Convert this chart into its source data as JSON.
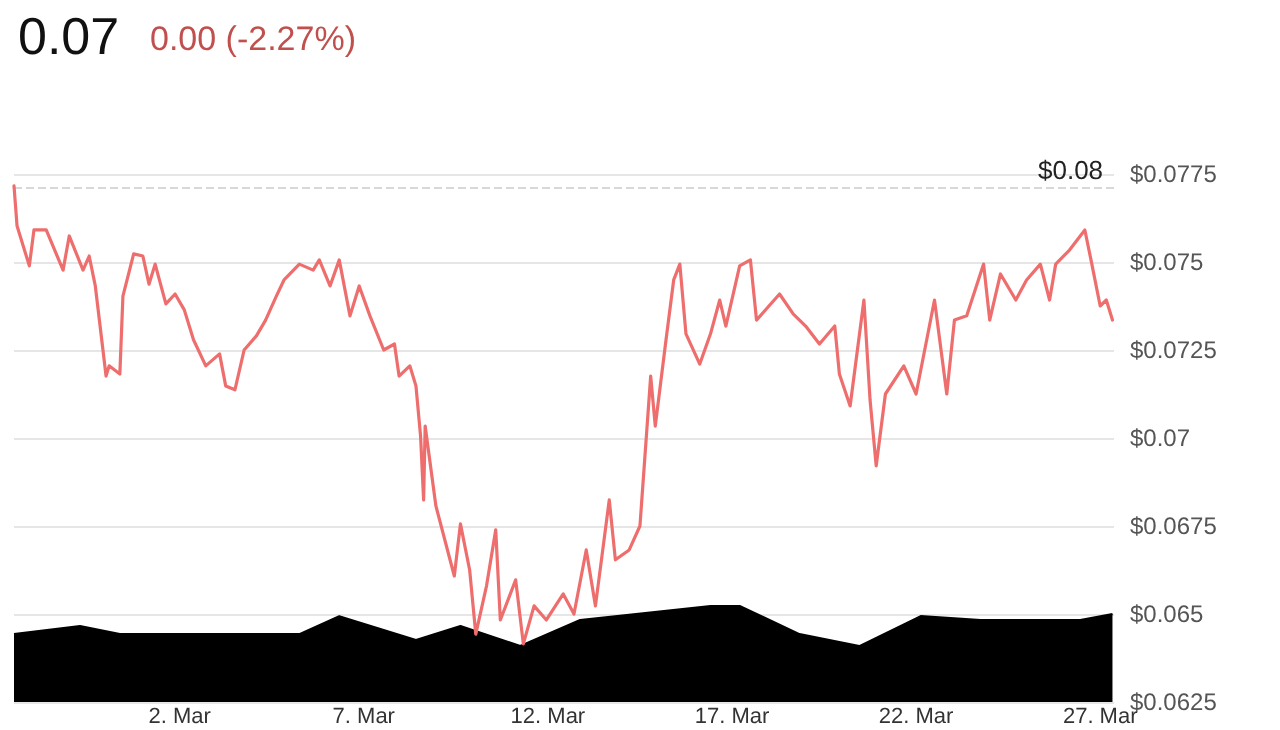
{
  "chart_data": {
    "type": "line",
    "title": "0.07",
    "subtitle": "0.00 (-2.27%)",
    "marker": "none",
    "line_style": "solid",
    "grid": "y",
    "xlim": [
      "--02-25T12:00",
      "--03-27T09:00"
    ],
    "xticks": [
      {
        "value": "--03-02",
        "label": "2. Mar"
      },
      {
        "value": "--03-07",
        "label": "7. Mar"
      },
      {
        "value": "--03-12",
        "label": "12. Mar"
      },
      {
        "value": "--03-17",
        "label": "17. Mar"
      },
      {
        "value": "--03-22",
        "label": "22. Mar"
      },
      {
        "value": "--03-27",
        "label": "27. Mar"
      }
    ],
    "ylim": [
      0.0625,
      0.0775
    ],
    "yticks": [
      {
        "value": 0.0625,
        "label": "$0.0625"
      },
      {
        "value": 0.065,
        "label": "$0.065"
      },
      {
        "value": 0.0675,
        "label": "$0.0675"
      },
      {
        "value": 0.07,
        "label": "$0.07"
      },
      {
        "value": 0.0725,
        "label": "$0.0725"
      },
      {
        "value": 0.075,
        "label": "$0.075"
      },
      {
        "value": 0.0775,
        "label": "$0.0775"
      }
    ],
    "ref_lines": [
      {
        "axis": "y",
        "value": 0.0771,
        "label": "$0.08",
        "color": "#d8d8d8",
        "line_style": "dashed"
      }
    ],
    "series": [
      {
        "type": "area",
        "color": "#000000",
        "x": [
          "--02-25T12:00",
          "--02-27T07:00",
          "--02-28T09:00",
          "--03-05T06:00",
          "--03-06T08:00",
          "--03-08T10:00",
          "--03-09T15:00",
          "--03-11T06:00",
          "--03-12T21:00",
          "--03-16T10:00",
          "--03-17T05:00",
          "--03-18T20:00",
          "--03-20T11:00",
          "--03-22T03:00",
          "--03-23T18:00",
          "--03-26T11:00",
          "--03-27T08:00"
        ],
        "values": [
          0.06443,
          0.06466,
          0.06443,
          0.06443,
          0.06494,
          0.06426,
          0.06466,
          0.06409,
          0.06483,
          0.06523,
          0.06523,
          0.06443,
          0.06409,
          0.06494,
          0.06483,
          0.06483,
          0.065
        ]
      },
      {
        "color": "#ee6e6e",
        "x": [
          "--02-25T12:00",
          "--02-25T14:00",
          "--02-25T22:00",
          "--02-26T01:00",
          "--02-26T09:00",
          "--02-26T20:00",
          "--02-27T00:00",
          "--02-27T09:00",
          "--02-27T13:00",
          "--02-27T17:00",
          "--02-28T00:00",
          "--02-28T02:00",
          "--02-28T09:00",
          "--02-28T11:00",
          "--02-28T18:00",
          "--03-01T00:00",
          "--03-01T04:00",
          "--03-01T08:00",
          "--03-01T15:00",
          "--03-01T21:00",
          "--03-02T03:00",
          "--03-02T09:00",
          "--03-02T17:00",
          "--03-03T02:00",
          "--03-03T06:00",
          "--03-03T12:00",
          "--03-03T18:00",
          "--03-04T02:00",
          "--03-04T08:00",
          "--03-04T15:00",
          "--03-04T20:00",
          "--03-05T06:00",
          "--03-05T15:00",
          "--03-05T19:00",
          "--03-06T02:00",
          "--03-06T08:00",
          "--03-06T15:00",
          "--03-06T21:00",
          "--03-07T04:00",
          "--03-07T13:00",
          "--03-07T20:00",
          "--03-07T23:00",
          "--03-08T06:00",
          "--03-08T10:00",
          "--03-08T13:00",
          "--03-08T15:00",
          "--03-08T16:00",
          "--03-08T23:00",
          "--03-09T11:00",
          "--03-09T15:00",
          "--03-09T21:00",
          "--03-10T01:00",
          "--03-10T08:00",
          "--03-10T14:00",
          "--03-10T17:00",
          "--03-11T03:00",
          "--03-11T08:00",
          "--03-11T15:00",
          "--03-11T23:00",
          "--03-12T10:00",
          "--03-12T17:00",
          "--03-13T01:00",
          "--03-13T07:00",
          "--03-13T16:00",
          "--03-13T20:00",
          "--03-14T05:00",
          "--03-14T12:00",
          "--03-14T19:00",
          "--03-14T22:00",
          "--03-15T05:00",
          "--03-15T10:00",
          "--03-15T14:00",
          "--03-15T18:00",
          "--03-16T03:00",
          "--03-16T10:00",
          "--03-16T16:00",
          "--03-16T20:00",
          "--03-17T05:00",
          "--03-17T12:00",
          "--03-17T16:00",
          "--03-18T07:00",
          "--03-18T16:00",
          "--03-19T00:00",
          "--03-19T09:00",
          "--03-19T19:00",
          "--03-19T22:00",
          "--03-20T05:00",
          "--03-20T14:00",
          "--03-20T18:00",
          "--03-20T22:00",
          "--03-21T04:00",
          "--03-21T16:00",
          "--03-22T00:00",
          "--03-22T12:00",
          "--03-22T20:00",
          "--03-23T01:00",
          "--03-23T09:00",
          "--03-23T20:00",
          "--03-24T00:00",
          "--03-24T07:00",
          "--03-24T17:00",
          "--03-25T00:00",
          "--03-25T09:00",
          "--03-25T15:00",
          "--03-25T19:00",
          "--03-26T04:00",
          "--03-26T14:00",
          "--03-26T18:00",
          "--03-27T00:00",
          "--03-27T04:00",
          "--03-27T08:00"
        ],
        "values": [
          0.07716,
          0.07602,
          0.07489,
          0.07591,
          0.07591,
          0.07477,
          0.07574,
          0.07477,
          0.07517,
          0.07432,
          0.07176,
          0.07205,
          0.07182,
          0.07403,
          0.07523,
          0.07517,
          0.07437,
          0.07494,
          0.07381,
          0.07409,
          0.07364,
          0.07279,
          0.07205,
          0.07239,
          0.07148,
          0.07137,
          0.0725,
          0.0729,
          0.07335,
          0.07403,
          0.07449,
          0.07494,
          0.07477,
          0.07506,
          0.07432,
          0.07506,
          0.07347,
          0.07432,
          0.07347,
          0.0725,
          0.07267,
          0.07176,
          0.07205,
          0.07148,
          0.07006,
          0.06824,
          0.07034,
          0.06807,
          0.06608,
          0.06756,
          0.06625,
          0.06443,
          0.0658,
          0.06739,
          0.06483,
          0.06597,
          0.06415,
          0.06523,
          0.06483,
          0.06557,
          0.065,
          0.06682,
          0.06523,
          0.06824,
          0.06654,
          0.06682,
          0.0675,
          0.07176,
          0.07034,
          0.07279,
          0.07449,
          0.07494,
          0.07296,
          0.0721,
          0.07296,
          0.07392,
          0.07318,
          0.07489,
          0.07506,
          0.07335,
          0.07409,
          0.07352,
          0.07318,
          0.07267,
          0.07318,
          0.07182,
          0.07091,
          0.07392,
          0.07108,
          0.06921,
          0.07125,
          0.07205,
          0.07125,
          0.07392,
          0.07125,
          0.07335,
          0.07347,
          0.07494,
          0.07335,
          0.07466,
          0.07392,
          0.07449,
          0.07494,
          0.07392,
          0.07494,
          0.07534,
          0.07591,
          0.07506,
          0.07375,
          0.07392,
          0.07335
        ]
      }
    ]
  }
}
